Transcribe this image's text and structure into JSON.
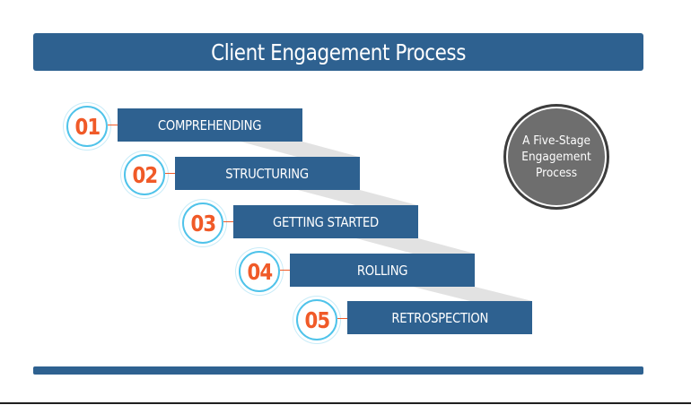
{
  "title": "Client Engagement Process",
  "steps": [
    {
      "number": "01",
      "label": "COMPREHENDING"
    },
    {
      "number": "02",
      "label": "STRUCTURING"
    },
    {
      "number": "03",
      "label": "GETTING STARTED"
    },
    {
      "number": "04",
      "label": "ROLLING"
    },
    {
      "number": "05",
      "label": "RETROSPECTION"
    }
  ],
  "badge": {
    "line1": "A Five-Stage",
    "line2": "Engagement",
    "line3": "Process"
  },
  "colors": {
    "primary_blue": "#2e6190",
    "accent_orange": "#f05a28",
    "ring_cyan": "#4fc3ea",
    "badge_gray": "#6e6e6e"
  }
}
